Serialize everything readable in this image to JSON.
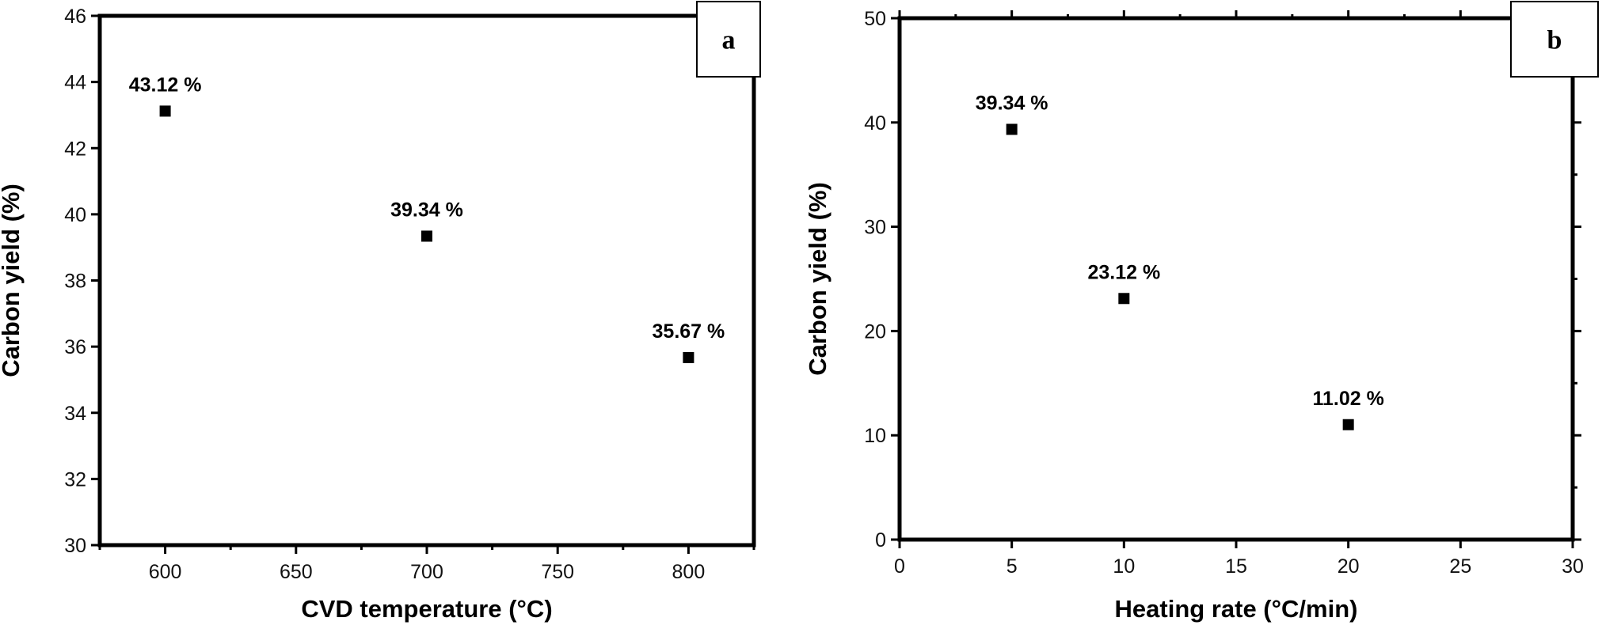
{
  "chart_data": [
    {
      "type": "scatter",
      "panel_label": "a",
      "xlabel": "CVD temperature (°C)",
      "ylabel": "Carbon yield (%)",
      "xlim": [
        575,
        825
      ],
      "ylim": [
        30,
        46
      ],
      "xticks": [
        600,
        650,
        700,
        750,
        800
      ],
      "yticks": [
        30,
        32,
        34,
        36,
        38,
        40,
        42,
        44,
        46
      ],
      "points": [
        {
          "x": 600,
          "y": 43.12,
          "label": "43.12 %"
        },
        {
          "x": 700,
          "y": 39.34,
          "label": "39.34 %"
        },
        {
          "x": 800,
          "y": 35.67,
          "label": "35.67 %"
        }
      ],
      "grid": false,
      "marker": "filled-square",
      "color": "#000000"
    },
    {
      "type": "scatter",
      "panel_label": "b",
      "xlabel": "Heating rate (°C/min)",
      "ylabel": "Carbon yield (%)",
      "xlim": [
        0,
        30
      ],
      "ylim": [
        0,
        50
      ],
      "xticks": [
        0,
        5,
        10,
        15,
        20,
        25,
        30
      ],
      "yticks": [
        0,
        10,
        20,
        30,
        40,
        50
      ],
      "points": [
        {
          "x": 5,
          "y": 39.34,
          "label": "39.34 %"
        },
        {
          "x": 10,
          "y": 23.12,
          "label": "23.12 %"
        },
        {
          "x": 20,
          "y": 11.02,
          "label": "11.02 %"
        }
      ],
      "grid": false,
      "marker": "filled-square",
      "color": "#000000"
    }
  ]
}
